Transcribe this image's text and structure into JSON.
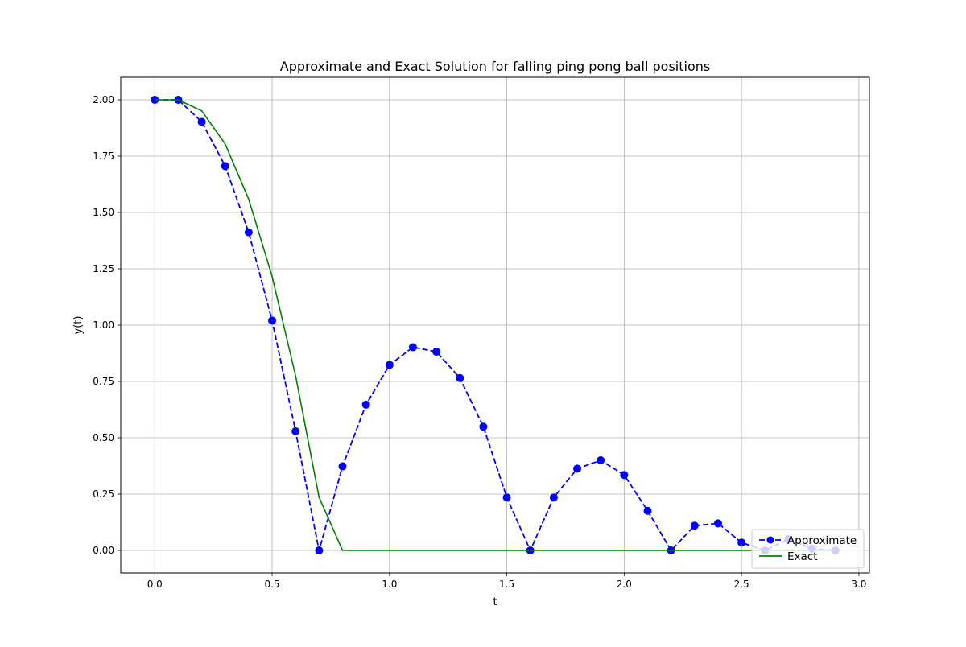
{
  "chart_data": {
    "type": "line",
    "title": "Approximate and Exact Solution for falling ping pong ball positions",
    "xlabel": "t",
    "ylabel": "y(t)",
    "xlim": [
      -0.145,
      3.045
    ],
    "ylim": [
      -0.1,
      2.1
    ],
    "xticks": [
      0.0,
      0.5,
      1.0,
      1.5,
      2.0,
      2.5,
      3.0
    ],
    "xtick_labels": [
      "0.0",
      "0.5",
      "1.0",
      "1.5",
      "2.0",
      "2.5",
      "3.0"
    ],
    "yticks": [
      0.0,
      0.25,
      0.5,
      0.75,
      1.0,
      1.25,
      1.5,
      1.75,
      2.0
    ],
    "ytick_labels": [
      "0.00",
      "0.25",
      "0.50",
      "0.75",
      "1.00",
      "1.25",
      "1.50",
      "1.75",
      "2.00"
    ],
    "grid": true,
    "legend_position": "lower right",
    "series": [
      {
        "name": "Approximate",
        "color": "#0000ff",
        "line_style": "dashed",
        "marker": "circle",
        "x": [
          0.0,
          0.1,
          0.2,
          0.3,
          0.4,
          0.5,
          0.6,
          0.7,
          0.8,
          0.9,
          1.0,
          1.1,
          1.2,
          1.3,
          1.4,
          1.5,
          1.6,
          1.7,
          1.8,
          1.9,
          2.0,
          2.1,
          2.2,
          2.3,
          2.4,
          2.5,
          2.6,
          2.7,
          2.8,
          2.9
        ],
        "y": [
          2.0,
          2.0,
          1.902,
          1.706,
          1.412,
          1.02,
          0.529,
          0.0,
          0.373,
          0.647,
          0.823,
          0.902,
          0.882,
          0.765,
          0.549,
          0.235,
          0.0,
          0.235,
          0.363,
          0.4,
          0.335,
          0.176,
          0.0,
          0.11,
          0.12,
          0.035,
          0.0,
          0.05,
          0.008,
          0.0
        ]
      },
      {
        "name": "Exact",
        "color": "#008000",
        "line_style": "solid",
        "marker": "none",
        "x": [
          0.0,
          0.1,
          0.2,
          0.3,
          0.4,
          0.5,
          0.6,
          0.7,
          0.8,
          0.9,
          1.0,
          1.1,
          1.2,
          1.3,
          1.4,
          1.5,
          1.6,
          1.7,
          1.8,
          1.9,
          2.0,
          2.1,
          2.2,
          2.3,
          2.4,
          2.5,
          2.6,
          2.7,
          2.8,
          2.9
        ],
        "y": [
          2.0,
          2.0,
          1.951,
          1.804,
          1.559,
          1.216,
          0.775,
          0.236,
          0.0,
          0.0,
          0.0,
          0.0,
          0.0,
          0.0,
          0.0,
          0.0,
          0.0,
          0.0,
          0.0,
          0.0,
          0.0,
          0.0,
          0.0,
          0.0,
          0.0,
          0.0,
          0.0,
          0.0,
          0.0,
          0.0
        ]
      }
    ]
  }
}
